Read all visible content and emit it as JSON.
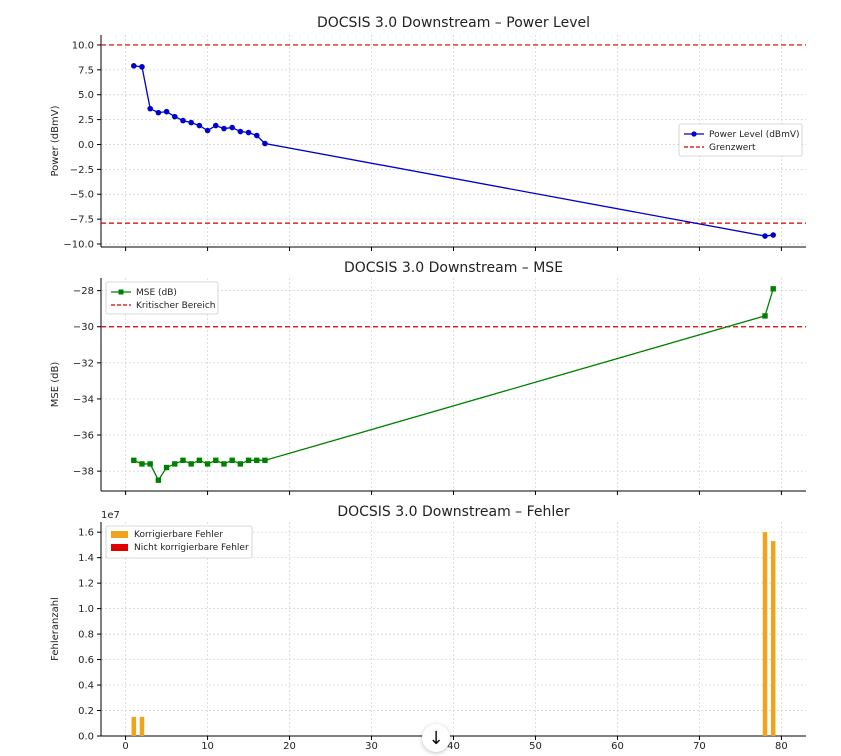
{
  "chart_data": [
    {
      "type": "line",
      "title": "DOCSIS 3.0 Downstream – Power Level",
      "ylabel": "Power (dBmV)",
      "xlabel": "",
      "xlim": [
        -3,
        83
      ],
      "ylim": [
        -10.3,
        11
      ],
      "yticks": [
        "10.0",
        "7.5",
        "5.0",
        "2.5",
        "0.0",
        "−2.5",
        "−5.0",
        "−7.5",
        "−10.0"
      ],
      "ytick_values": [
        10,
        7.5,
        5,
        2.5,
        0,
        -2.5,
        -5,
        -7.5,
        -10
      ],
      "grid": true,
      "legend_position": "right",
      "color": "#0000cc",
      "threshold_color": "#cc0000",
      "series": [
        {
          "name": "Power Level (dBmV)",
          "x": [
            1,
            2,
            3,
            4,
            5,
            6,
            7,
            8,
            9,
            10,
            11,
            12,
            13,
            14,
            15,
            16,
            17,
            78,
            79
          ],
          "y": [
            7.9,
            7.8,
            3.6,
            3.2,
            3.3,
            2.8,
            2.4,
            2.2,
            1.9,
            1.4,
            1.9,
            1.6,
            1.7,
            1.3,
            1.2,
            0.9,
            0.1,
            -9.2,
            -9.1
          ]
        }
      ],
      "thresholds": [
        {
          "name": "Grenzwert",
          "values": [
            10,
            -7.9
          ]
        }
      ]
    },
    {
      "type": "line",
      "title": "DOCSIS 3.0 Downstream – MSE",
      "ylabel": "MSE (dB)",
      "xlabel": "",
      "xlim": [
        -3,
        83
      ],
      "ylim": [
        -39.1,
        -27.3
      ],
      "yticks": [
        "−28",
        "−30",
        "−32",
        "−34",
        "−36",
        "−38"
      ],
      "ytick_values": [
        -28,
        -30,
        -32,
        -34,
        -36,
        -38
      ],
      "grid": true,
      "legend_position": "top-left",
      "color": "#008000",
      "threshold_color": "#cc0000",
      "series": [
        {
          "name": "MSE (dB)",
          "x": [
            1,
            2,
            3,
            4,
            5,
            6,
            7,
            8,
            9,
            10,
            11,
            12,
            13,
            14,
            15,
            16,
            17,
            78,
            79
          ],
          "y": [
            -37.4,
            -37.6,
            -37.6,
            -38.5,
            -37.8,
            -37.6,
            -37.4,
            -37.6,
            -37.4,
            -37.6,
            -37.4,
            -37.6,
            -37.4,
            -37.6,
            -37.4,
            -37.4,
            -37.4,
            -29.4,
            -27.9
          ]
        }
      ],
      "thresholds": [
        {
          "name": "Kritischer Bereich",
          "values": [
            -30
          ]
        }
      ]
    },
    {
      "type": "bar",
      "title": "DOCSIS 3.0 Downstream – Fehler",
      "ylabel": "Fehleranzahl",
      "xlabel": "",
      "offset_label": "1e7",
      "xlim": [
        -3,
        83
      ],
      "ylim": [
        0,
        1.68
      ],
      "yticks": [
        "1.6",
        "1.4",
        "1.2",
        "1.0",
        "0.8",
        "0.6",
        "0.4",
        "0.2",
        "0.0"
      ],
      "ytick_values": [
        1.6,
        1.4,
        1.2,
        1.0,
        0.8,
        0.6,
        0.4,
        0.2,
        0.0
      ],
      "xticks": [
        "0",
        "10",
        "20",
        "30",
        "40",
        "50",
        "60",
        "70",
        "80"
      ],
      "xtick_values": [
        0,
        10,
        20,
        30,
        40,
        50,
        60,
        70,
        80
      ],
      "grid": true,
      "legend_position": "top-left",
      "series": [
        {
          "name": "Korrigierbare Fehler",
          "color": "#f0a41e",
          "x": [
            1,
            2,
            78,
            79
          ],
          "values": [
            0.15,
            0.15,
            1.6,
            1.53
          ]
        },
        {
          "name": "Nicht korrigierbare Fehler",
          "color": "#e00000",
          "x": [
            1,
            2,
            78,
            79
          ],
          "values": [
            0,
            0,
            0,
            0
          ]
        }
      ]
    }
  ],
  "scroll_button": {
    "icon": "arrow-down-icon",
    "glyph": "↓"
  }
}
